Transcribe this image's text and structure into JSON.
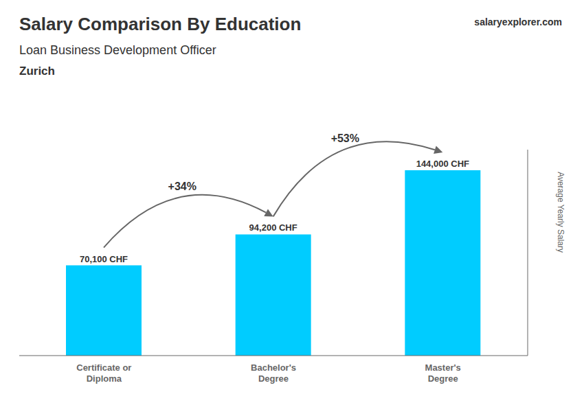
{
  "chart_data": {
    "type": "bar",
    "title": "Salary Comparison By Education",
    "subtitle": "Loan Business Development Officer",
    "ylabel": "Average Yearly Salary",
    "categories": [
      "Certificate or\nDiploma",
      "Bachelor's\nDegree",
      "Master's\nDegree"
    ],
    "values": [
      70100,
      94200,
      144000
    ],
    "value_labels": [
      "70,100 CHF",
      "94,200 CHF",
      "144,000 CHF"
    ],
    "data_labels": true,
    "color": "#00ccff",
    "ylim": [
      0,
      160000
    ],
    "tick_labels": "x",
    "grid": false,
    "annotations": [
      {
        "text": "Zurich"
      },
      {
        "text": "salaryexplorer.com"
      },
      {
        "text": "+34%",
        "from": 0,
        "to": 1
      },
      {
        "text": "+53%",
        "from": 1,
        "to": 2
      }
    ]
  }
}
